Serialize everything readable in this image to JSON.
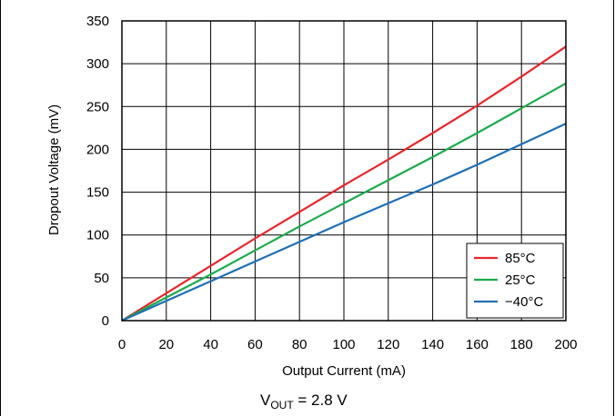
{
  "chart_data": {
    "type": "line",
    "xlabel": "Output Current (mA)",
    "ylabel": "Dropout Voltage (mV)",
    "caption": {
      "main": "V",
      "sub": "OUT",
      "rest": " = 2.8 V"
    },
    "xlim": [
      0,
      200
    ],
    "ylim": [
      0,
      350
    ],
    "x_ticks": [
      0,
      20,
      40,
      60,
      80,
      100,
      120,
      140,
      160,
      180,
      200
    ],
    "y_ticks": [
      0,
      50,
      100,
      150,
      200,
      250,
      300,
      350
    ],
    "grid": true,
    "legend_position": "bottom-right",
    "x": [
      0,
      20,
      40,
      60,
      80,
      100,
      120,
      140,
      160,
      180,
      200
    ],
    "series": [
      {
        "name": "85°C",
        "color": "#e8262b",
        "values": [
          0,
          32,
          64,
          96,
          127,
          158,
          188,
          219,
          251,
          285,
          320
        ]
      },
      {
        "name": "25°C",
        "color": "#1bab4b",
        "values": [
          0,
          27,
          54,
          82,
          110,
          137,
          164,
          191,
          219,
          248,
          277
        ]
      },
      {
        "name": "−40°C",
        "color": "#1f6fb5",
        "values": [
          0,
          23,
          46,
          69,
          92,
          115,
          137,
          159,
          182,
          206,
          230
        ]
      }
    ]
  }
}
